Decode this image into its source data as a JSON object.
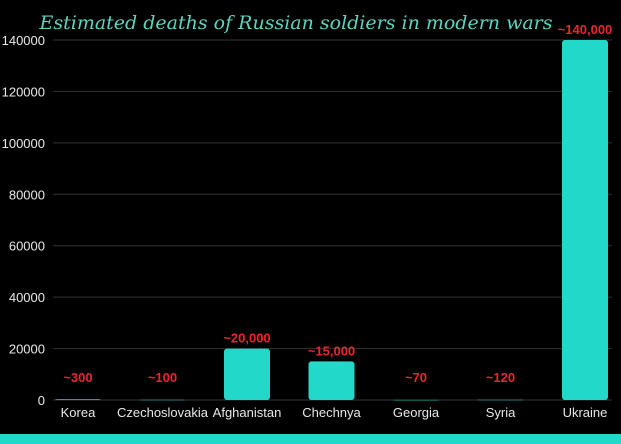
{
  "chart_data": {
    "type": "bar",
    "title": "Estimated deaths of Russian soldiers in modern wars",
    "xlabel": "",
    "ylabel": "",
    "ylim": [
      0,
      140000
    ],
    "yticks": [
      0,
      20000,
      40000,
      60000,
      80000,
      100000,
      120000,
      140000
    ],
    "grid": true,
    "categories": [
      "Korea",
      "Czechoslovakia",
      "Afghanistan",
      "Chechnya",
      "Georgia",
      "Syria",
      "Ukraine"
    ],
    "values": [
      300,
      100,
      20000,
      15000,
      70,
      120,
      140000
    ],
    "data_labels": [
      "~300",
      "~100",
      "~20,000",
      "~15,000",
      "~70",
      "~120",
      "~140,000"
    ],
    "colors": {
      "bar": "#22d8c8",
      "label": "#e8262e",
      "title": "#5fd3bf",
      "background": "#000000",
      "footer": "#22d8c8"
    }
  }
}
